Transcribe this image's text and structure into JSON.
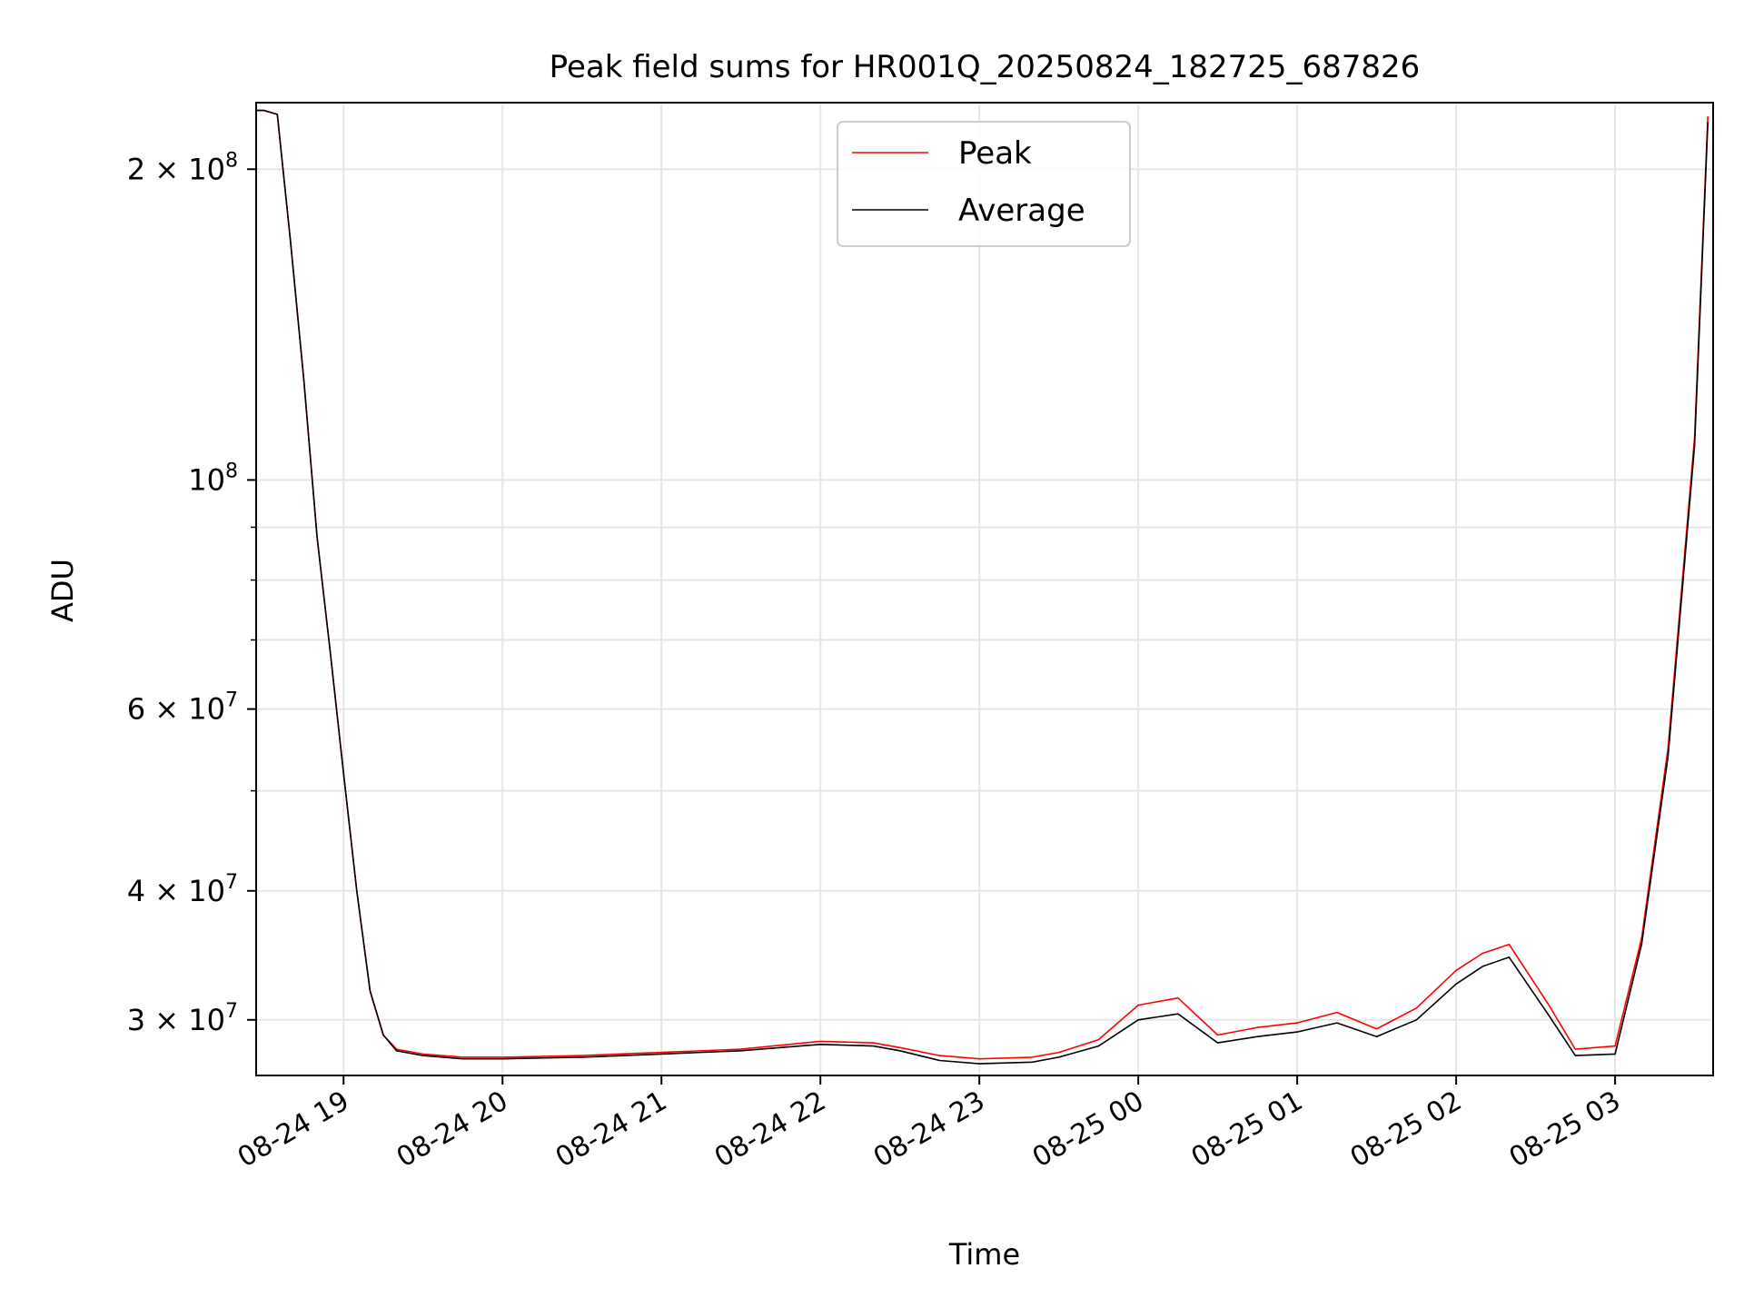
{
  "chart_data": {
    "type": "line",
    "title": "Peak field sums for HR001Q_20250824_182725_687826",
    "xlabel": "Time",
    "ylabel": "ADU",
    "y_scale": "log",
    "ylim": [
      26500000,
      232000000
    ],
    "xlim": [
      "2025-08-24 18:27",
      "2025-08-25 03:37"
    ],
    "grid": true,
    "legend_placement": "upper center",
    "colors": {
      "peak": "#ff0000",
      "average": "#000000"
    },
    "x_ticks": [
      {
        "time": "2025-08-24 19:00",
        "label": "08-24 19"
      },
      {
        "time": "2025-08-24 20:00",
        "label": "08-24 20"
      },
      {
        "time": "2025-08-24 21:00",
        "label": "08-24 21"
      },
      {
        "time": "2025-08-24 22:00",
        "label": "08-24 22"
      },
      {
        "time": "2025-08-24 23:00",
        "label": "08-24 23"
      },
      {
        "time": "2025-08-25 00:00",
        "label": "08-25 00"
      },
      {
        "time": "2025-08-25 01:00",
        "label": "08-25 01"
      },
      {
        "time": "2025-08-25 02:00",
        "label": "08-25 02"
      },
      {
        "time": "2025-08-25 03:00",
        "label": "08-25 03"
      }
    ],
    "y_ticks": [
      {
        "value": 30000000,
        "mantissa": "3",
        "exponent": "7"
      },
      {
        "value": 40000000,
        "mantissa": "4",
        "exponent": "7"
      },
      {
        "value": 60000000,
        "mantissa": "6",
        "exponent": "7"
      },
      {
        "value": 100000000,
        "mantissa": "",
        "exponent": "8"
      },
      {
        "value": 200000000,
        "mantissa": "2",
        "exponent": "8"
      }
    ],
    "y_minor_ticks": [
      50000000,
      70000000,
      80000000,
      90000000
    ],
    "series": [
      {
        "name": "Peak",
        "x": [
          "2025-08-24 18:27",
          "2025-08-24 18:30",
          "2025-08-24 18:35",
          "2025-08-24 18:40",
          "2025-08-24 18:45",
          "2025-08-24 18:50",
          "2025-08-24 18:55",
          "2025-08-24 19:00",
          "2025-08-24 19:05",
          "2025-08-24 19:10",
          "2025-08-24 19:15",
          "2025-08-24 19:20",
          "2025-08-24 19:30",
          "2025-08-24 19:45",
          "2025-08-24 20:00",
          "2025-08-24 20:30",
          "2025-08-24 21:00",
          "2025-08-24 21:30",
          "2025-08-24 22:00",
          "2025-08-24 22:20",
          "2025-08-24 22:30",
          "2025-08-24 22:45",
          "2025-08-24 23:00",
          "2025-08-24 23:20",
          "2025-08-24 23:30",
          "2025-08-24 23:45",
          "2025-08-25 00:00",
          "2025-08-25 00:15",
          "2025-08-25 00:30",
          "2025-08-25 00:45",
          "2025-08-25 01:00",
          "2025-08-25 01:15",
          "2025-08-25 01:30",
          "2025-08-25 01:45",
          "2025-08-25 02:00",
          "2025-08-25 02:10",
          "2025-08-25 02:20",
          "2025-08-25 02:35",
          "2025-08-25 02:45",
          "2025-08-25 03:00",
          "2025-08-25 03:10",
          "2025-08-25 03:20",
          "2025-08-25 03:30",
          "2025-08-25 03:35"
        ],
        "values": [
          228000000,
          228000000,
          226000000,
          170000000,
          125000000,
          88000000,
          68000000,
          52000000,
          40000000,
          32000000,
          29000000,
          28100000,
          27800000,
          27600000,
          27600000,
          27700000,
          27900000,
          28100000,
          28600000,
          28500000,
          28200000,
          27700000,
          27500000,
          27600000,
          27900000,
          28700000,
          31000000,
          31500000,
          29000000,
          29500000,
          29800000,
          30500000,
          29400000,
          30800000,
          33500000,
          34800000,
          35500000,
          31000000,
          28100000,
          28300000,
          36000000,
          55000000,
          110000000,
          225000000
        ]
      },
      {
        "name": "Average",
        "x": [
          "2025-08-24 18:27",
          "2025-08-24 18:30",
          "2025-08-24 18:35",
          "2025-08-24 18:40",
          "2025-08-24 18:45",
          "2025-08-24 18:50",
          "2025-08-24 18:55",
          "2025-08-24 19:00",
          "2025-08-24 19:05",
          "2025-08-24 19:10",
          "2025-08-24 19:15",
          "2025-08-24 19:20",
          "2025-08-24 19:30",
          "2025-08-24 19:45",
          "2025-08-24 20:00",
          "2025-08-24 20:30",
          "2025-08-24 21:00",
          "2025-08-24 21:30",
          "2025-08-24 22:00",
          "2025-08-24 22:20",
          "2025-08-24 22:30",
          "2025-08-24 22:45",
          "2025-08-24 23:00",
          "2025-08-24 23:20",
          "2025-08-24 23:30",
          "2025-08-24 23:45",
          "2025-08-25 00:00",
          "2025-08-25 00:15",
          "2025-08-25 00:30",
          "2025-08-25 00:45",
          "2025-08-25 01:00",
          "2025-08-25 01:15",
          "2025-08-25 01:30",
          "2025-08-25 01:45",
          "2025-08-25 02:00",
          "2025-08-25 02:10",
          "2025-08-25 02:20",
          "2025-08-25 02:35",
          "2025-08-25 02:45",
          "2025-08-25 03:00",
          "2025-08-25 03:10",
          "2025-08-25 03:20",
          "2025-08-25 03:30",
          "2025-08-25 03:35"
        ],
        "values": [
          228000000,
          228000000,
          226000000,
          170000000,
          125000000,
          88000000,
          68000000,
          52000000,
          40000000,
          32000000,
          29000000,
          28000000,
          27700000,
          27500000,
          27500000,
          27600000,
          27800000,
          28000000,
          28400000,
          28300000,
          28000000,
          27400000,
          27200000,
          27300000,
          27600000,
          28300000,
          30000000,
          30400000,
          28500000,
          28900000,
          29200000,
          29800000,
          28900000,
          30000000,
          32500000,
          33800000,
          34500000,
          30300000,
          27700000,
          27800000,
          35500000,
          54000000,
          108000000,
          222000000
        ]
      }
    ]
  }
}
